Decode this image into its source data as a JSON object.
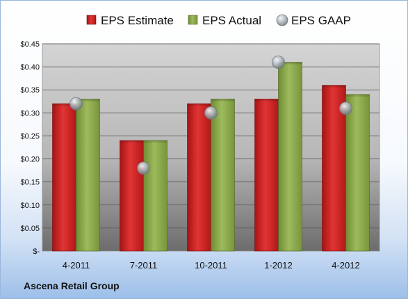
{
  "footer": {
    "company": "Ascena Retail Group"
  },
  "colors": {
    "estimate": "#d62a2a",
    "actual": "#8fae4e",
    "gaap": "#b9c0c6"
  },
  "chart_data": {
    "type": "bar",
    "title": "",
    "xlabel": "",
    "ylabel": "",
    "categories": [
      "4-2011",
      "7-2011",
      "10-2011",
      "1-2012",
      "4-2012"
    ],
    "series": [
      {
        "name": "EPS Estimate",
        "type": "bar",
        "values": [
          0.32,
          0.24,
          0.32,
          0.33,
          0.36
        ]
      },
      {
        "name": "EPS Actual",
        "type": "bar",
        "values": [
          0.33,
          0.24,
          0.33,
          0.41,
          0.34
        ]
      },
      {
        "name": "EPS GAAP",
        "type": "scatter",
        "values": [
          0.32,
          0.18,
          0.3,
          0.41,
          0.31
        ]
      }
    ],
    "ylim": [
      0,
      0.45
    ],
    "yticks": [
      0,
      0.05,
      0.1,
      0.15,
      0.2,
      0.25,
      0.3,
      0.35,
      0.4,
      0.45
    ],
    "ytick_labels": [
      "$-",
      "$0.05",
      "$0.10",
      "$0.15",
      "$0.20",
      "$0.25",
      "$0.30",
      "$0.35",
      "$0.40",
      "$0.45"
    ],
    "grid": true,
    "legend_position": "top"
  }
}
